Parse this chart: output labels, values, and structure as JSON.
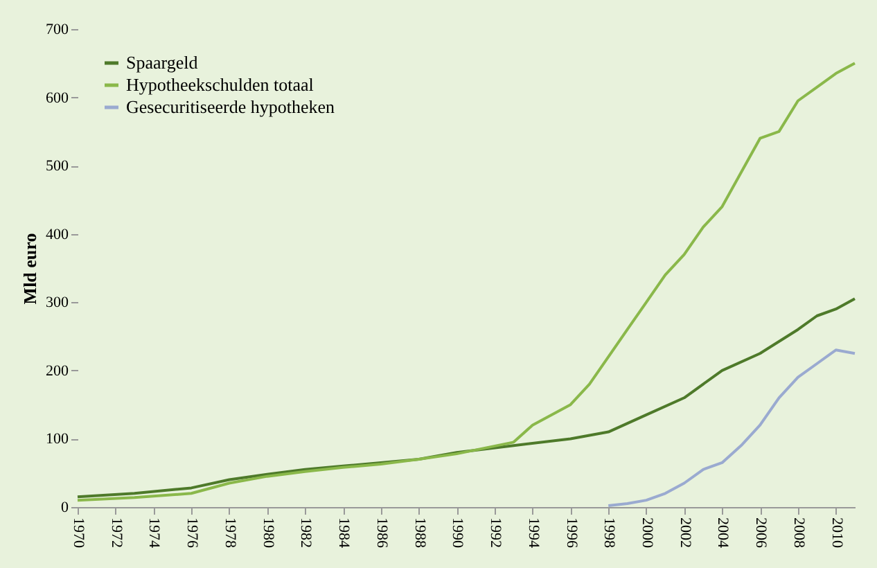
{
  "chart_data": {
    "type": "line",
    "ylabel": "Mld euro",
    "ylim": [
      0,
      700
    ],
    "yticks": [
      0,
      100,
      200,
      300,
      400,
      500,
      600,
      700
    ],
    "xlim": [
      1970,
      2011
    ],
    "xticks": [
      1970,
      1972,
      1974,
      1976,
      1978,
      1980,
      1982,
      1984,
      1986,
      1988,
      1990,
      1992,
      1994,
      1996,
      1998,
      2000,
      2002,
      2004,
      2006,
      2008,
      2010
    ],
    "grid": false,
    "legend": "top left",
    "marker": "none",
    "line_style": "solid",
    "series": [
      {
        "name": "Spaargeld",
        "color": "#4e7a2a",
        "x": [
          1970,
          1973,
          1976,
          1978,
          1980,
          1982,
          1984,
          1986,
          1988,
          1990,
          1993,
          1996,
          1998,
          2000,
          2002,
          2004,
          2006,
          2008,
          2009,
          2010,
          2011
        ],
        "values": [
          15,
          20,
          28,
          40,
          48,
          55,
          60,
          65,
          70,
          80,
          90,
          100,
          110,
          135,
          160,
          200,
          225,
          260,
          280,
          290,
          305
        ]
      },
      {
        "name": "Hypotheekschulden totaal",
        "color": "#8ab84a",
        "x": [
          1970,
          1973,
          1976,
          1978,
          1980,
          1982,
          1984,
          1986,
          1988,
          1990,
          1993,
          1994,
          1996,
          1997,
          1998,
          1999,
          2000,
          2001,
          2002,
          2003,
          2004,
          2005,
          2006,
          2007,
          2008,
          2009,
          2010,
          2011
        ],
        "values": [
          10,
          14,
          20,
          35,
          45,
          52,
          58,
          63,
          70,
          78,
          95,
          120,
          150,
          180,
          220,
          260,
          300,
          340,
          370,
          410,
          440,
          490,
          540,
          550,
          595,
          615,
          635,
          650
        ]
      },
      {
        "name": "Gesecuritiseerde hypotheken",
        "color": "#9aaad0",
        "x": [
          1998,
          1999,
          2000,
          2001,
          2002,
          2003,
          2004,
          2005,
          2006,
          2007,
          2008,
          2009,
          2010,
          2011
        ],
        "values": [
          2,
          5,
          10,
          20,
          35,
          55,
          65,
          90,
          120,
          160,
          190,
          210,
          230,
          225
        ]
      }
    ]
  }
}
